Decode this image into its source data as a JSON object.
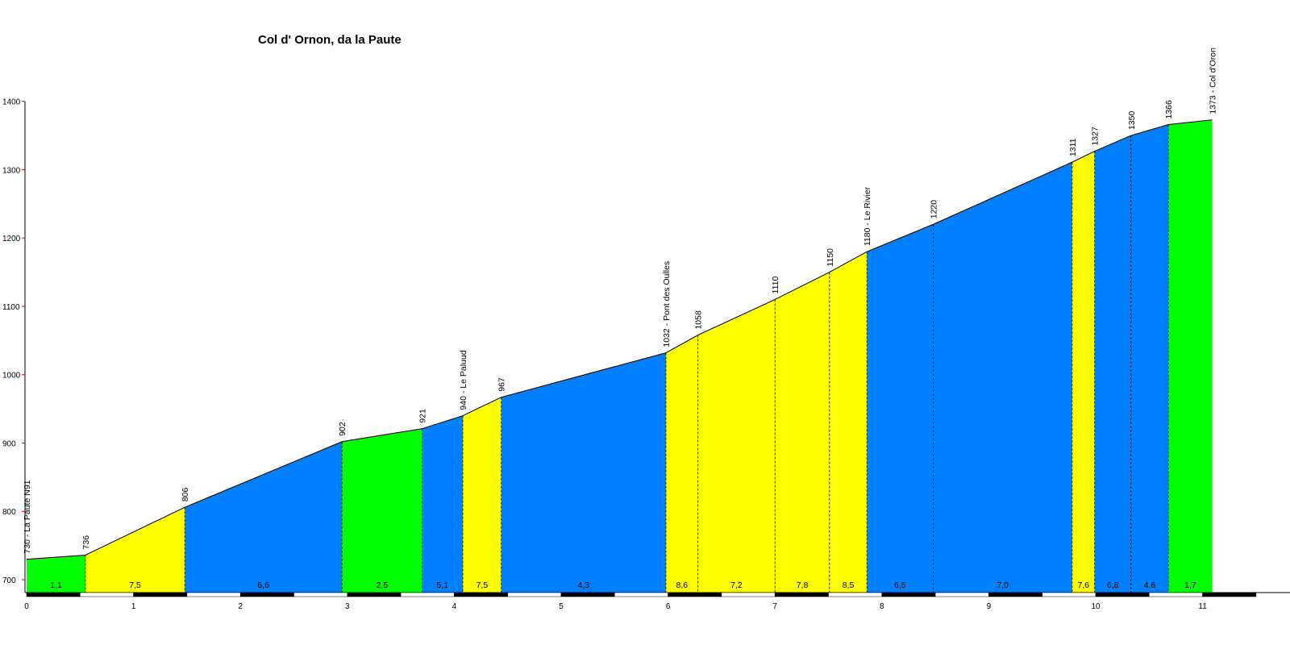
{
  "chart_data": {
    "type": "area",
    "title": "Col d' Ornon, da la Paute",
    "xlabel": "",
    "ylabel": "",
    "xlim": [
      0,
      11
    ],
    "ylim": [
      700,
      1400
    ],
    "x_ticks": [
      "0",
      "1",
      "2",
      "3",
      "4",
      "5",
      "6",
      "7",
      "8",
      "9",
      "10",
      "11"
    ],
    "y_ticks": [
      "700",
      "800",
      "900",
      "1000",
      "1100",
      "1200",
      "1300",
      "1400"
    ],
    "grid": false,
    "colors": {
      "green": "#00ff00",
      "yellow": "#ffff00",
      "blue": "#0080ff",
      "tick_red": "#cc0000",
      "outline": "#000000"
    },
    "points": [
      {
        "x": 0.0,
        "elevation": 730,
        "label": "730 - La Paute  N91"
      },
      {
        "x": 0.55,
        "elevation": 736,
        "label": "736"
      },
      {
        "x": 1.48,
        "elevation": 806,
        "label": "806"
      },
      {
        "x": 2.95,
        "elevation": 902,
        "label": "902"
      },
      {
        "x": 3.7,
        "elevation": 921,
        "label": "921"
      },
      {
        "x": 4.08,
        "elevation": 940,
        "label": "940 - Le Paluud"
      },
      {
        "x": 4.44,
        "elevation": 967,
        "label": "967"
      },
      {
        "x": 5.98,
        "elevation": 1032,
        "label": "1032 - Pont des Oulles"
      },
      {
        "x": 6.28,
        "elevation": 1058,
        "label": "1058"
      },
      {
        "x": 7.0,
        "elevation": 1110,
        "label": "1110"
      },
      {
        "x": 7.51,
        "elevation": 1150,
        "label": "1150"
      },
      {
        "x": 7.86,
        "elevation": 1180,
        "label": "1180 - Le Rivier"
      },
      {
        "x": 8.48,
        "elevation": 1220,
        "label": "1220"
      },
      {
        "x": 9.78,
        "elevation": 1311,
        "label": "1311"
      },
      {
        "x": 9.99,
        "elevation": 1327,
        "label": "1327"
      },
      {
        "x": 10.33,
        "elevation": 1350,
        "label": "1350"
      },
      {
        "x": 10.68,
        "elevation": 1366,
        "label": "1366"
      },
      {
        "x": 11.09,
        "elevation": 1373,
        "label": "1373 - Col d'Oron"
      }
    ],
    "segments": [
      {
        "gradient": "1,1",
        "color": "green"
      },
      {
        "gradient": "7,5",
        "color": "yellow"
      },
      {
        "gradient": "6,6",
        "color": "blue"
      },
      {
        "gradient": "2,5",
        "color": "green"
      },
      {
        "gradient": "5,1",
        "color": "blue"
      },
      {
        "gradient": "7,5",
        "color": "yellow"
      },
      {
        "gradient": "4,3",
        "color": "blue"
      },
      {
        "gradient": "8,6",
        "color": "yellow"
      },
      {
        "gradient": "7,2",
        "color": "yellow"
      },
      {
        "gradient": "7,8",
        "color": "yellow"
      },
      {
        "gradient": "8,5",
        "color": "yellow"
      },
      {
        "gradient": "6,5",
        "color": "blue"
      },
      {
        "gradient": "7,0",
        "color": "blue"
      },
      {
        "gradient": "7,6",
        "color": "yellow"
      },
      {
        "gradient": "6,8",
        "color": "blue"
      },
      {
        "gradient": "4,6",
        "color": "blue"
      },
      {
        "gradient": "1,7",
        "color": "green"
      }
    ]
  }
}
